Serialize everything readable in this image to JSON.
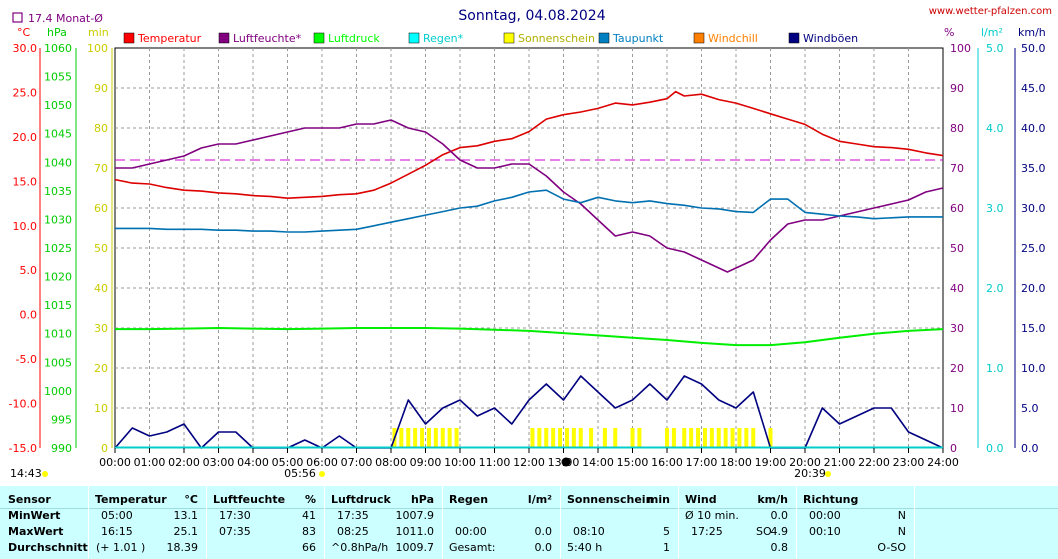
{
  "chart_data": {
    "type": "line",
    "title": "Sonntag, 04.08.2024",
    "source": "www.wetter-pfalzen.com",
    "month_avg": "17.4 Monat-Ø",
    "x_ticks": [
      "00:00",
      "01:00",
      "02:00",
      "03:00",
      "04:00",
      "05:00",
      "06:00",
      "07:00",
      "08:00",
      "09:00",
      "10:00",
      "11:00",
      "12:00",
      "13:00",
      "14:00",
      "15:00",
      "16:00",
      "17:00",
      "18:00",
      "19:00",
      "20:00",
      "21:00",
      "22:00",
      "23:00",
      "24:00"
    ],
    "sunrise": "05:56",
    "sunset": "20:39",
    "current_time": "14:43",
    "axes": {
      "temp": {
        "unit": "°C",
        "range": [
          -15,
          30
        ],
        "ticks": [
          "30.0",
          "25.0",
          "20.0",
          "15.0",
          "10.0",
          "5.0",
          "0.0",
          "-5.0",
          "-10.0",
          "-15.0"
        ],
        "color": "#ff0000"
      },
      "pressure": {
        "unit": "hPa",
        "range": [
          990,
          1060
        ],
        "ticks": [
          "1060",
          "1055",
          "1050",
          "1045",
          "1040",
          "1035",
          "1030",
          "1025",
          "1020",
          "1015",
          "1010",
          "1005",
          "1000",
          "995",
          "990"
        ],
        "color": "#00cc00"
      },
      "sunshine": {
        "unit": "min",
        "range": [
          0,
          100
        ],
        "ticks": [
          "100",
          "90",
          "80",
          "70",
          "60",
          "50",
          "40",
          "30",
          "20",
          "10",
          "0"
        ],
        "color": "#cccc00"
      },
      "humidity": {
        "unit": "%",
        "range": [
          0,
          100
        ],
        "ticks": [
          "100",
          "90",
          "80",
          "70",
          "60",
          "50",
          "40",
          "30",
          "20",
          "10",
          "0"
        ],
        "color": "#800080"
      },
      "rain": {
        "unit": "l/m²",
        "range": [
          0,
          5
        ],
        "ticks": [
          "5.0",
          "4.0",
          "3.0",
          "2.0",
          "1.0",
          "0.0"
        ],
        "color": "#00cccc"
      },
      "wind": {
        "unit": "km/h",
        "range": [
          0,
          50
        ],
        "ticks": [
          "50.0",
          "45.0",
          "40.0",
          "35.0",
          "30.0",
          "25.0",
          "20.0",
          "15.0",
          "10.0",
          "5.0",
          "0.0"
        ],
        "color": "#000080"
      }
    },
    "legend": [
      {
        "name": "Temperatur",
        "color": "#ff0000"
      },
      {
        "name": "Luftfeuchte*",
        "color": "#800080"
      },
      {
        "name": "Luftdruck",
        "color": "#00ff00"
      },
      {
        "name": "Regen*",
        "color": "#00ffff"
      },
      {
        "name": "Sonnenschein",
        "color": "#ffff00"
      },
      {
        "name": "Taupunkt",
        "color": "#0080c0"
      },
      {
        "name": "Windchill",
        "color": "#ff8000"
      },
      {
        "name": "Windböen",
        "color": "#000080"
      }
    ],
    "month_avg_temp": 17.4,
    "series": [
      {
        "name": "Temperatur",
        "axis": "temp",
        "color": "#dd0000",
        "x": [
          0,
          0.5,
          1,
          1.5,
          2,
          2.5,
          3,
          3.5,
          4,
          4.5,
          5,
          5.5,
          6,
          6.5,
          7,
          7.5,
          8,
          8.5,
          9,
          9.5,
          10,
          10.5,
          11,
          11.5,
          12,
          12.5,
          13,
          13.5,
          14,
          14.5,
          15,
          15.5,
          16,
          16.25,
          16.5,
          17,
          17.5,
          18,
          18.5,
          19,
          19.5,
          20,
          20.5,
          21,
          21.5,
          22,
          22.5,
          23,
          23.5,
          24
        ],
        "y": [
          15.2,
          14.8,
          14.7,
          14.3,
          14.0,
          13.9,
          13.7,
          13.6,
          13.4,
          13.3,
          13.1,
          13.2,
          13.3,
          13.5,
          13.6,
          14.0,
          14.8,
          15.8,
          16.8,
          18.0,
          18.8,
          19.0,
          19.5,
          19.8,
          20.6,
          22.0,
          22.5,
          22.8,
          23.2,
          23.8,
          23.6,
          23.9,
          24.3,
          25.1,
          24.6,
          24.8,
          24.2,
          23.8,
          23.2,
          22.6,
          22.0,
          21.4,
          20.3,
          19.5,
          19.2,
          18.9,
          18.8,
          18.6,
          18.2,
          17.9
        ]
      },
      {
        "name": "Luftfeuchte",
        "axis": "humidity",
        "color": "#800080",
        "x": [
          0,
          0.5,
          1,
          1.5,
          2,
          2.5,
          3,
          3.5,
          4,
          4.5,
          5,
          5.5,
          6,
          6.5,
          7,
          7.5,
          8,
          8.5,
          9,
          9.5,
          10,
          10.5,
          11,
          11.5,
          12,
          12.5,
          13,
          13.5,
          14,
          14.5,
          15,
          15.5,
          16,
          16.5,
          17,
          17.5,
          17.75,
          18,
          18.5,
          19,
          19.5,
          20,
          20.5,
          21,
          21.5,
          22,
          22.5,
          23,
          23.5,
          24
        ],
        "y": [
          70,
          70,
          71,
          72,
          73,
          75,
          76,
          76,
          77,
          78,
          79,
          80,
          80,
          80,
          81,
          81,
          82,
          80,
          79,
          76,
          72,
          70,
          70,
          71,
          71,
          68,
          64,
          61,
          57,
          53,
          54,
          53,
          50,
          49,
          47,
          45,
          44,
          45,
          47,
          52,
          56,
          57,
          57,
          58,
          59,
          60,
          61,
          62,
          64,
          65
        ]
      },
      {
        "name": "Luftdruck",
        "axis": "pressure",
        "color": "#00ee00",
        "x": [
          0,
          1,
          2,
          3,
          4,
          5,
          6,
          7,
          8,
          9,
          10,
          11,
          12,
          13,
          14,
          15,
          16,
          17,
          18,
          19,
          20,
          21,
          22,
          23,
          24
        ],
        "y": [
          1010.8,
          1010.8,
          1010.9,
          1011.0,
          1010.9,
          1010.8,
          1010.9,
          1011.0,
          1011.0,
          1011.0,
          1010.9,
          1010.7,
          1010.5,
          1010.1,
          1009.7,
          1009.3,
          1008.9,
          1008.4,
          1008.0,
          1008.0,
          1008.5,
          1009.3,
          1010.0,
          1010.5,
          1010.8
        ]
      },
      {
        "name": "Taupunkt",
        "axis": "temp",
        "color": "#0070b0",
        "x": [
          0,
          0.5,
          1,
          1.5,
          2,
          2.5,
          3,
          3.5,
          4,
          4.5,
          5,
          5.5,
          6,
          6.5,
          7,
          7.5,
          8,
          8.5,
          9,
          9.5,
          10,
          10.5,
          11,
          11.5,
          12,
          12.5,
          13,
          13.5,
          14,
          14.5,
          15,
          15.5,
          16,
          16.5,
          17,
          17.5,
          18,
          18.5,
          19,
          19.5,
          20,
          20.5,
          21,
          21.5,
          22,
          22.5,
          23,
          23.5,
          24
        ],
        "y": [
          9.7,
          9.7,
          9.7,
          9.6,
          9.6,
          9.6,
          9.5,
          9.5,
          9.4,
          9.4,
          9.3,
          9.3,
          9.4,
          9.5,
          9.6,
          10.0,
          10.4,
          10.8,
          11.2,
          11.6,
          12.0,
          12.2,
          12.8,
          13.2,
          13.8,
          14.0,
          13.0,
          12.6,
          13.2,
          12.8,
          12.6,
          12.8,
          12.5,
          12.3,
          12.0,
          11.9,
          11.6,
          11.5,
          13.0,
          13.0,
          11.5,
          11.3,
          11.1,
          11.0,
          10.8,
          10.9,
          11.0,
          11.0,
          11.0
        ]
      },
      {
        "name": "Windböen",
        "axis": "wind",
        "color": "#000080",
        "x": [
          0,
          0.5,
          1,
          1.5,
          2,
          2.5,
          3,
          3.5,
          4,
          4.5,
          5,
          5.5,
          6,
          6.5,
          7,
          7.5,
          8,
          8.5,
          9,
          9.5,
          10,
          10.5,
          11,
          11.5,
          12,
          12.5,
          13,
          13.5,
          14,
          14.5,
          15,
          15.5,
          16,
          16.5,
          17,
          17.5,
          18,
          18.5,
          19,
          19.5,
          20,
          20.5,
          21,
          21.5,
          22,
          22.5,
          23,
          23.5,
          24
        ],
        "y": [
          0,
          2.5,
          1.5,
          2,
          3,
          0,
          2,
          2,
          0,
          0,
          0,
          1,
          0,
          1.5,
          0,
          0,
          0,
          6,
          3,
          5,
          6,
          4,
          5,
          3,
          6,
          8,
          6,
          9,
          7,
          5,
          6,
          8,
          6,
          9,
          8,
          6,
          5,
          7,
          0,
          0,
          0,
          5,
          3,
          4,
          5,
          5,
          2,
          1,
          0
        ]
      }
    ],
    "sunshine_minutes": {
      "x": [
        8.1,
        8.3,
        8.5,
        8.7,
        8.9,
        9.1,
        9.3,
        9.5,
        9.7,
        9.9,
        12.1,
        12.3,
        12.5,
        12.7,
        12.9,
        13.1,
        13.3,
        13.5,
        13.8,
        14.2,
        14.5,
        15.0,
        15.2,
        16.0,
        16.2,
        16.5,
        16.7,
        16.9,
        17.1,
        17.3,
        17.5,
        17.7,
        17.9,
        18.1,
        18.3,
        18.5,
        19.0
      ],
      "y": [
        5,
        5,
        5,
        5,
        5,
        5,
        5,
        5,
        5,
        5,
        5,
        5,
        5,
        5,
        5,
        5,
        5,
        5,
        5,
        5,
        5,
        5,
        5,
        5,
        5,
        5,
        5,
        5,
        5,
        5,
        5,
        5,
        5,
        5,
        5,
        5,
        5
      ]
    },
    "stats": {
      "sensor": "Sensor",
      "rows": [
        "MinWert",
        "MaxWert",
        "Durchschnitt"
      ],
      "temperature": {
        "label": "Temperatur",
        "unit": "°C",
        "min_time": "05:00",
        "min": "13.1",
        "max_time": "16:15",
        "max": "25.1",
        "avg_note": "(+ 1.01 )",
        "avg": "18.39"
      },
      "humidity": {
        "label": "Luftfeuchte",
        "unit": "%",
        "min_time": "17:30",
        "min": "41",
        "max_time": "07:35",
        "max": "83",
        "avg": "66"
      },
      "pressure": {
        "label": "Luftdruck",
        "unit": "hPa",
        "min_time": "17:35",
        "min": "1007.9",
        "max_time": "08:25",
        "max": "1011.0",
        "avg_note": "^0.8hPa/h",
        "avg": "1009.7"
      },
      "rain": {
        "label": "Regen",
        "unit": "l/m²",
        "max_time": "00:00",
        "max": "0.0",
        "total_label": "Gesamt:",
        "total": "0.0"
      },
      "sunshine": {
        "label": "Sonnenschein",
        "unit": "min",
        "max_time": "08:10",
        "max": "5",
        "total": "5:40 h",
        "avg": "1"
      },
      "wind": {
        "label": "Wind",
        "unit": "km/h",
        "min_label": "Ø 10 min.",
        "min": "0.0",
        "max_time": "17:25",
        "max_dir": "SO",
        "max": "4.9",
        "avg": "0.8"
      },
      "direction": {
        "label": "Richtung",
        "min_time": "00:00",
        "min": "N",
        "max_time": "00:10",
        "max": "N",
        "avg": "O-SO"
      }
    }
  }
}
